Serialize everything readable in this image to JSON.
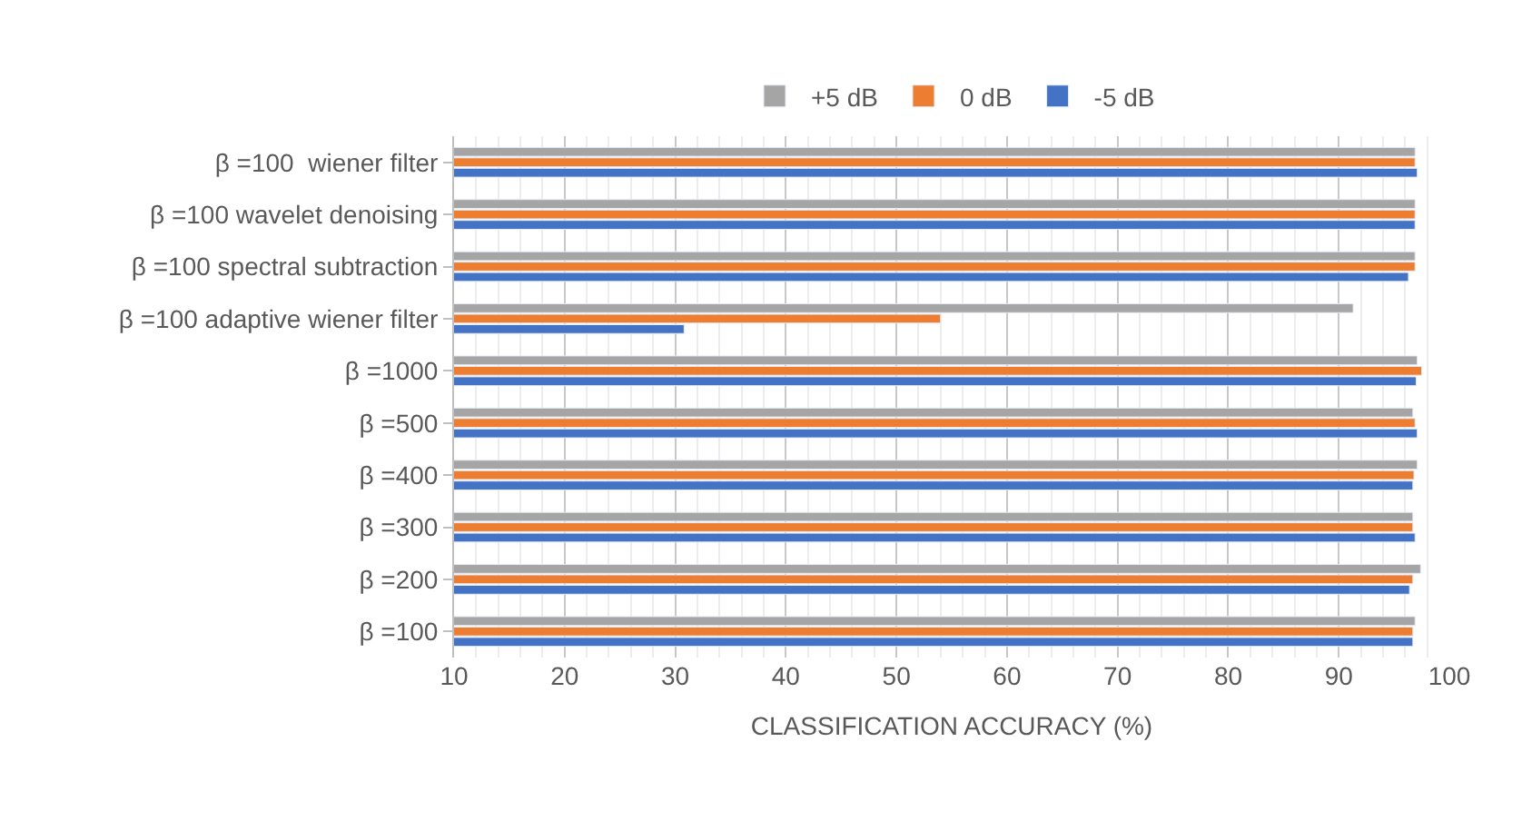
{
  "chart_data": {
    "type": "bar",
    "orientation": "horizontal",
    "xlabel": "CLASSIFICATION ACCURACY (%)",
    "categories": [
      "β =100  wiener filter",
      "β =100 wavelet denoising",
      "β =100 spectral subtraction",
      "β =100 adaptive wiener filter",
      "β =1000",
      "β =500",
      "β =400",
      "β =300",
      "β =200",
      "β =100"
    ],
    "series": [
      {
        "name": "+5 dB",
        "color": "#a5a5a5",
        "values": [
          96.9,
          96.9,
          96.9,
          91.3,
          97.1,
          96.7,
          97.1,
          96.7,
          97.4,
          96.9
        ]
      },
      {
        "name": "0 dB",
        "color": "#ed7d31",
        "values": [
          96.9,
          96.9,
          96.9,
          54,
          97.5,
          96.9,
          96.8,
          96.7,
          96.7,
          96.7
        ]
      },
      {
        "name": "-5 dB",
        "color": "#4472c4",
        "values": [
          97.1,
          96.9,
          96.3,
          30.8,
          97.0,
          97.1,
          96.7,
          96.9,
          96.4,
          96.7
        ]
      }
    ],
    "xlim": [
      10,
      100
    ],
    "xticks": [
      10,
      20,
      30,
      40,
      50,
      60,
      70,
      80,
      90,
      100
    ],
    "grid": "x",
    "legend": "top"
  }
}
